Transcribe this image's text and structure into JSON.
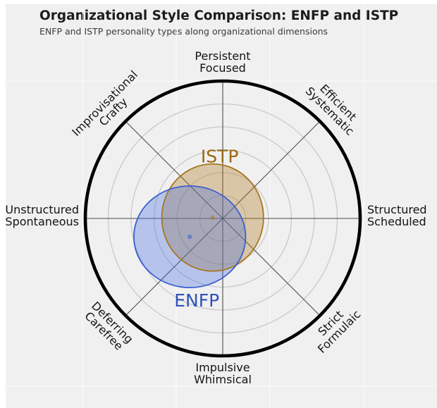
{
  "chart_data": {
    "type": "radar-ellipse",
    "title": "Organizational Style Comparison: ENFP and ISTP",
    "subtitle": "ENFP and ISTP personality types along organizational dimensions",
    "radial_axis": {
      "min": 0,
      "max": 3,
      "ring_interval": 0.5,
      "rings": [
        0.5,
        1.0,
        1.5,
        2.0,
        2.5,
        3.0
      ],
      "grid": true,
      "tick_labels_shown": false
    },
    "axes": [
      {
        "angle_deg": 90,
        "lines": [
          "Persistent",
          "Focused"
        ]
      },
      {
        "angle_deg": 45,
        "lines": [
          "Efficient",
          "Systematic"
        ]
      },
      {
        "angle_deg": 0,
        "lines": [
          "Structured",
          "Scheduled"
        ]
      },
      {
        "angle_deg": 315,
        "lines": [
          "Strict",
          "Formulaic"
        ]
      },
      {
        "angle_deg": 270,
        "lines": [
          "Impulsive",
          "Whimsical"
        ]
      },
      {
        "angle_deg": 225,
        "lines": [
          "Deferring",
          "Carefree"
        ]
      },
      {
        "angle_deg": 180,
        "lines": [
          "Unstructured",
          "Spontaneous"
        ]
      },
      {
        "angle_deg": 135,
        "lines": [
          "Improvisational",
          "Crafty"
        ]
      }
    ],
    "series": [
      {
        "name": "ISTP",
        "color": "#a87622",
        "label_color": "#9a660e",
        "fill": "#b07820",
        "fill_opacity": 0.35,
        "center": {
          "x": -0.22,
          "y": 0.02
        },
        "rx": 1.11,
        "ry": 1.17,
        "center_dot": true,
        "label_pos": "above"
      },
      {
        "name": "ENFP",
        "color": "#3b5fd0",
        "label_color": "#3151bb",
        "fill": "#4169e1",
        "fill_opacity": 0.33,
        "center": {
          "x": -0.72,
          "y": -0.4
        },
        "rx": 1.22,
        "ry": 1.11,
        "center_dot": true,
        "label_pos": "below"
      }
    ],
    "colors": {
      "figure_background": "#f0f0f0",
      "page_margin": "#ffffff",
      "outer_ring": "#000000",
      "grid_rings": "#c9c9c9",
      "spokes": "#4d4d4d",
      "axis_label_text": "#141414"
    },
    "legend_position": "none"
  }
}
